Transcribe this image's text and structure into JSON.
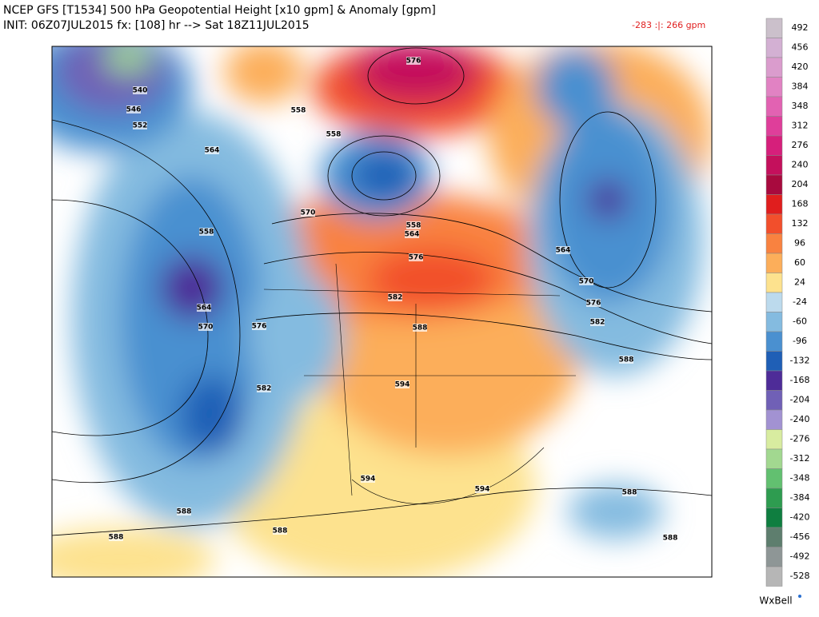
{
  "header": {
    "title": "NCEP GFS [T1534] 500 hPa Geopotential Height [x10 gpm] & Anomaly [gpm]",
    "init": "INIT: 06Z07JUL2015 fx: [108] hr --> Sat 18Z11JUL2015",
    "range": "-283 :|:  266 gpm"
  },
  "colorbar": {
    "ticks": [
      492,
      456,
      420,
      384,
      348,
      312,
      276,
      240,
      204,
      168,
      132,
      96,
      60,
      24,
      -24,
      -60,
      -96,
      -132,
      -168,
      -204,
      -240,
      -276,
      -312,
      -348,
      -384,
      -420,
      -456,
      -492,
      -528
    ],
    "colors": [
      "#cbc0cb",
      "#d3b0d3",
      "#da9ccd",
      "#e182c3",
      "#e262b2",
      "#df3e9a",
      "#d61f7b",
      "#c4105c",
      "#a80a3e",
      "#e01e1e",
      "#f24f2c",
      "#f98240",
      "#fcae5a",
      "#fde28e",
      "#bcdaed",
      "#84bbe0",
      "#4a90d0",
      "#1f5fb6",
      "#4e2c98",
      "#7060b6",
      "#a292d2",
      "#d8eca0",
      "#a2d890",
      "#62c070",
      "#2e9c50",
      "#0f7e40",
      "#5e7e6e",
      "#8e9696",
      "#b6b6b6"
    ]
  },
  "contour_labels": [
    "540",
    "546",
    "552",
    "564",
    "558",
    "564",
    "570",
    "576",
    "582",
    "558",
    "558",
    "570",
    "558",
    "564",
    "576",
    "582",
    "588",
    "594",
    "594",
    "594",
    "588",
    "588",
    "588",
    "576",
    "564",
    "570",
    "576",
    "582",
    "588",
    "588",
    "588"
  ],
  "credit": "WxBell"
}
